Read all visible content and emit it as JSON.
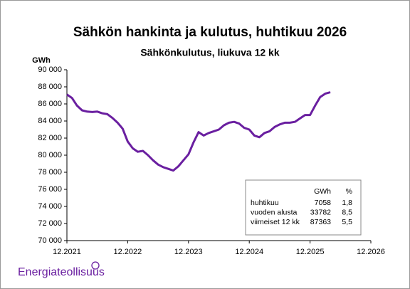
{
  "chart_data": {
    "type": "line",
    "title": "Sähkön hankinta ja kulutus, huhtikuu 2026",
    "subtitle": "Sähkönkulutus, liukuva 12 kk",
    "y_label": "GWh",
    "x": [
      "12.2021",
      "01.2022",
      "02.2022",
      "03.2022",
      "04.2022",
      "05.2022",
      "06.2022",
      "07.2022",
      "08.2022",
      "09.2022",
      "10.2022",
      "11.2022",
      "12.2022",
      "01.2023",
      "02.2023",
      "03.2023",
      "04.2023",
      "05.2023",
      "06.2023",
      "07.2023",
      "08.2023",
      "09.2023",
      "10.2023",
      "11.2023",
      "12.2023",
      "01.2024",
      "02.2024",
      "03.2024",
      "04.2024",
      "05.2024",
      "06.2024",
      "07.2024",
      "08.2024",
      "09.2024",
      "10.2024",
      "11.2024",
      "12.2024",
      "01.2025",
      "02.2025",
      "03.2025",
      "04.2025",
      "05.2025",
      "06.2025",
      "07.2025",
      "08.2025",
      "09.2025",
      "10.2025",
      "11.2025",
      "12.2025",
      "01.2026",
      "02.2026",
      "03.2026",
      "04.2026"
    ],
    "series": [
      {
        "name": "Sähkönkulutus",
        "color": "#6a1fa0",
        "values": [
          87100,
          86700,
          85800,
          85250,
          85100,
          85050,
          85100,
          84900,
          84800,
          84350,
          83800,
          83100,
          81600,
          80800,
          80400,
          80500,
          80000,
          79400,
          78900,
          78600,
          78400,
          78200,
          78700,
          79400,
          80100,
          81500,
          82700,
          82300,
          82600,
          82800,
          83000,
          83500,
          83800,
          83900,
          83700,
          83200,
          83000,
          82300,
          82100,
          82600,
          82800,
          83300,
          83600,
          83800,
          83800,
          83900,
          84300,
          84700,
          84700,
          85800,
          86800,
          87200,
          87363
        ]
      }
    ],
    "xlim": [
      "12.2021",
      "12.2026"
    ],
    "xticks": [
      "12.2021",
      "12.2022",
      "12.2023",
      "12.2024",
      "12.2025",
      "12.2026"
    ],
    "ylim": [
      70000,
      90000
    ],
    "yticks": [
      {
        "value": 70000,
        "label": "70 000"
      },
      {
        "value": 72000,
        "label": "72 000"
      },
      {
        "value": 74000,
        "label": "74 000"
      },
      {
        "value": 76000,
        "label": "76 000"
      },
      {
        "value": 78000,
        "label": "78 000"
      },
      {
        "value": 80000,
        "label": "80 000"
      },
      {
        "value": 82000,
        "label": "82 000"
      },
      {
        "value": 84000,
        "label": "84 000"
      },
      {
        "value": 86000,
        "label": "86 000"
      },
      {
        "value": 88000,
        "label": "88 000"
      },
      {
        "value": 90000,
        "label": "90 000"
      }
    ],
    "grid": false,
    "summary_table": {
      "headers": [
        "GWh",
        "%"
      ],
      "rows": [
        [
          "huhtikuu",
          "7058",
          "1,8"
        ],
        [
          "vuoden alusta",
          "33782",
          "8,5"
        ],
        [
          "viimeiset 12 kk",
          "87363",
          "5,5"
        ]
      ]
    },
    "logo": "Energiateollisuus"
  }
}
